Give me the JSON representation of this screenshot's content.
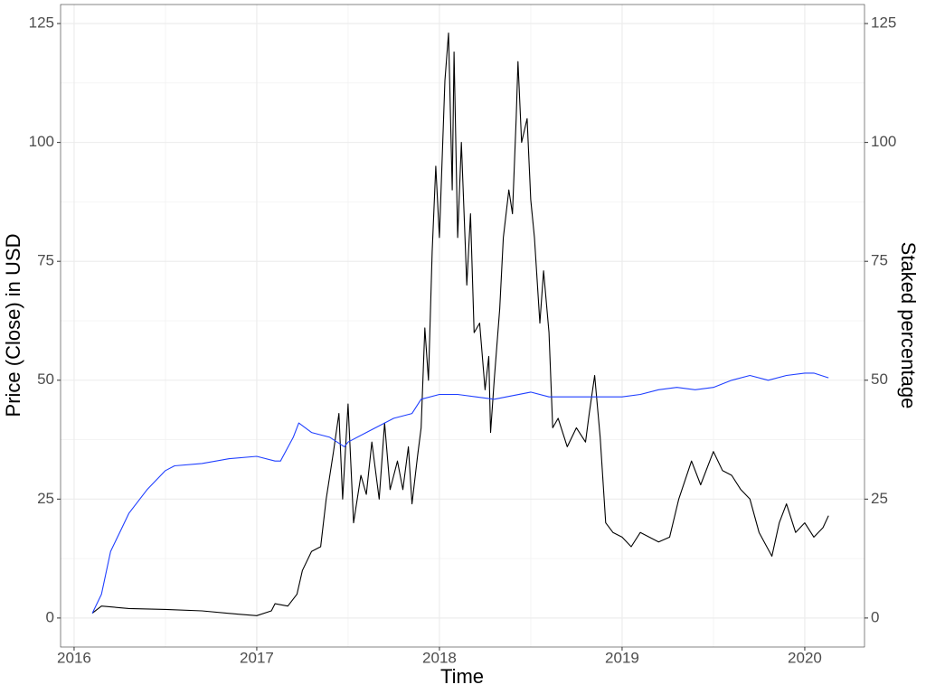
{
  "chart_data": {
    "type": "line",
    "xlabel": "Time",
    "ylabel": "Price (Close) in USD",
    "y2label": "Staked percentage",
    "y2label_color": "#1f3fff",
    "xlim": [
      2015.926,
      2020.327
    ],
    "ylim": [
      -6.1,
      129
    ],
    "y2lim": [
      -6.1,
      129
    ],
    "xticks": [
      2016,
      2017,
      2018,
      2019,
      2020
    ],
    "yticks": [
      0,
      25,
      50,
      75,
      100,
      125
    ],
    "y2ticks": [
      0,
      25,
      50,
      75,
      100,
      125
    ],
    "xgrid_minor": [
      2016.5,
      2017.5,
      2018.5,
      2019.5
    ],
    "ygrid_minor": [
      12.5,
      37.5,
      62.5,
      87.5,
      112.5
    ],
    "grid": true,
    "series": [
      {
        "color": "#000000",
        "x": [
          2016.1,
          2016.15,
          2016.3,
          2016.5,
          2016.7,
          2016.9,
          2017.0,
          2017.08,
          2017.1,
          2017.17,
          2017.22,
          2017.25,
          2017.3,
          2017.35,
          2017.38,
          2017.42,
          2017.45,
          2017.47,
          2017.5,
          2017.53,
          2017.57,
          2017.6,
          2017.63,
          2017.67,
          2017.7,
          2017.73,
          2017.77,
          2017.8,
          2017.83,
          2017.85,
          2017.88,
          2017.9,
          2017.92,
          2017.94,
          2017.96,
          2017.98,
          2018.0,
          2018.03,
          2018.05,
          2018.07,
          2018.08,
          2018.1,
          2018.12,
          2018.15,
          2018.17,
          2018.19,
          2018.22,
          2018.25,
          2018.27,
          2018.28,
          2018.3,
          2018.33,
          2018.35,
          2018.38,
          2018.4,
          2018.42,
          2018.43,
          2018.45,
          2018.48,
          2018.5,
          2018.52,
          2018.55,
          2018.57,
          2018.6,
          2018.62,
          2018.65,
          2018.7,
          2018.75,
          2018.8,
          2018.82,
          2018.85,
          2018.88,
          2018.91,
          2018.95,
          2019.0,
          2019.05,
          2019.1,
          2019.2,
          2019.26,
          2019.31,
          2019.38,
          2019.43,
          2019.5,
          2019.55,
          2019.6,
          2019.65,
          2019.7,
          2019.75,
          2019.82,
          2019.86,
          2019.9,
          2019.95,
          2020.0,
          2020.05,
          2020.1,
          2020.13
        ],
        "values": [
          1,
          2.5,
          2,
          1.8,
          1.5,
          0.8,
          0.5,
          1.5,
          3,
          2.5,
          5,
          10,
          14,
          15,
          25,
          35,
          43,
          25,
          45,
          20,
          30,
          26,
          37,
          25,
          41,
          27,
          33,
          27,
          36,
          24,
          34,
          40,
          61,
          50,
          77,
          95,
          80,
          113,
          123,
          90,
          119,
          80,
          100,
          70,
          85,
          60,
          62,
          48,
          55,
          39,
          50,
          65,
          80,
          90,
          85,
          105,
          117,
          100,
          105,
          88,
          80,
          62,
          73,
          60,
          40,
          42,
          36,
          40,
          37,
          43,
          51,
          38,
          20,
          18,
          17,
          15,
          18,
          16,
          17,
          25,
          33,
          28,
          35,
          31,
          30,
          27,
          25,
          18,
          13,
          20,
          24,
          18,
          20,
          17,
          19,
          21.5
        ]
      },
      {
        "color": "#1f3fff",
        "axis": "y2",
        "x": [
          2016.1,
          2016.15,
          2016.2,
          2016.25,
          2016.3,
          2016.4,
          2016.5,
          2016.55,
          2016.7,
          2016.85,
          2017.0,
          2017.1,
          2017.13,
          2017.2,
          2017.23,
          2017.3,
          2017.4,
          2017.48,
          2017.5,
          2017.6,
          2017.75,
          2017.85,
          2017.9,
          2018.0,
          2018.1,
          2018.2,
          2018.3,
          2018.5,
          2018.6,
          2018.8,
          2019.0,
          2019.1,
          2019.2,
          2019.3,
          2019.4,
          2019.5,
          2019.6,
          2019.7,
          2019.8,
          2019.9,
          2020.0,
          2020.05,
          2020.13
        ],
        "values": [
          1,
          5,
          14,
          18,
          22,
          27,
          31,
          32,
          32.5,
          33.5,
          34,
          33,
          33,
          38,
          41,
          39,
          38,
          36,
          37,
          39,
          42,
          43,
          46,
          47,
          47,
          46.5,
          46,
          47.5,
          46.5,
          46.5,
          46.5,
          47,
          48,
          48.5,
          48,
          48.5,
          50,
          51,
          50,
          51,
          51.5,
          51.5,
          50.5
        ]
      }
    ]
  }
}
